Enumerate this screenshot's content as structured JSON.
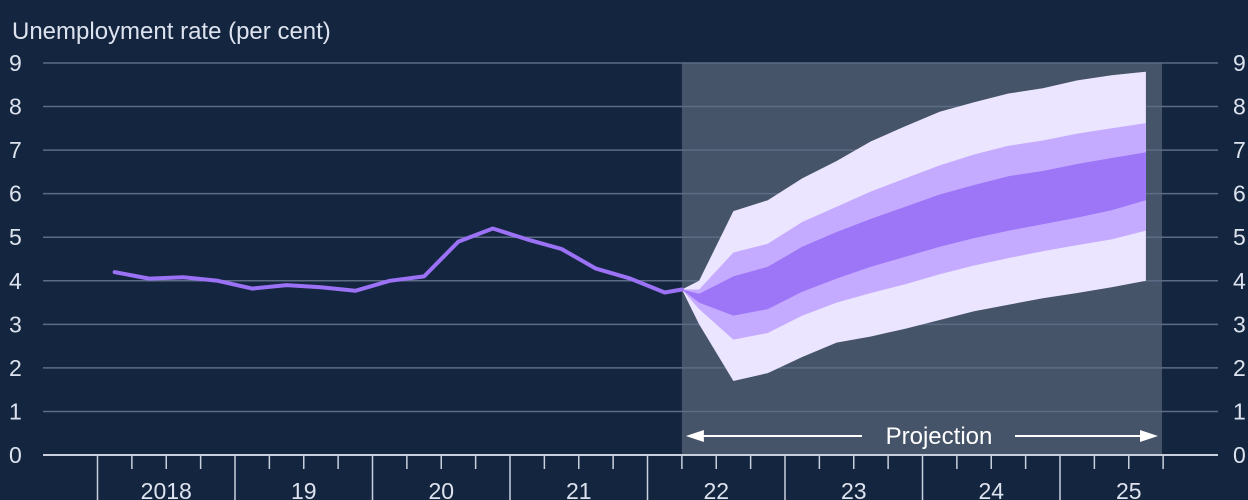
{
  "chart_data": {
    "type": "line",
    "title": "",
    "ylabel": "Unemployment rate (per cent)",
    "xlabel": "",
    "ylim": [
      0,
      9
    ],
    "yticks": [
      0,
      1,
      2,
      3,
      4,
      5,
      6,
      7,
      8,
      9
    ],
    "year_labels": [
      "2018",
      "19",
      "20",
      "21",
      "22",
      "23",
      "24",
      "25"
    ],
    "grid": true,
    "colors": {
      "background": "#14253f",
      "projection_shade": "#465469",
      "line": "#9b72f5",
      "band_outer": "#ece5ff",
      "band_middle": "#c5abff",
      "band_inner": "#9d75f7",
      "grid": "#5d6c86",
      "axis": "#c8d0de"
    },
    "series": [
      {
        "name": "",
        "x": [
          "2018Q1",
          "2018Q2",
          "2018Q3",
          "2018Q4",
          "2019Q1",
          "2019Q2",
          "2019Q3",
          "2019Q4",
          "2020Q1",
          "2020Q2",
          "2020Q3",
          "2020Q4",
          "2021Q1",
          "2021Q2",
          "2021Q3",
          "2021Q4",
          "2022Q1"
        ],
        "values": [
          4.2,
          4.05,
          4.08,
          4.0,
          3.82,
          3.9,
          3.85,
          3.77,
          4.0,
          4.1,
          4.9,
          5.2,
          4.95,
          4.73,
          4.28,
          4.05,
          3.73
        ]
      }
    ],
    "extra_point": {
      "x": "2022Q1_end",
      "value": 3.8
    },
    "fan_chart": {
      "x": [
        "2022Q1_end",
        "2022Q2",
        "2022Q3",
        "2022Q4",
        "2023Q1",
        "2023Q2",
        "2023Q3",
        "2023Q4",
        "2024Q1",
        "2024Q2",
        "2024Q3",
        "2024Q4",
        "2025Q1",
        "2025Q2",
        "2025Q3"
      ],
      "outer_upper": [
        3.8,
        4.0,
        5.6,
        5.85,
        6.35,
        6.75,
        7.2,
        7.55,
        7.88,
        8.1,
        8.3,
        8.42,
        8.6,
        8.72,
        8.8
      ],
      "outer_lower": [
        3.8,
        3.0,
        1.7,
        1.88,
        2.25,
        2.58,
        2.72,
        2.9,
        3.1,
        3.3,
        3.45,
        3.6,
        3.72,
        3.85,
        4.0
      ],
      "middle_upper": [
        3.8,
        3.8,
        4.65,
        4.85,
        5.35,
        5.7,
        6.05,
        6.35,
        6.65,
        6.9,
        7.1,
        7.22,
        7.38,
        7.5,
        7.62
      ],
      "middle_lower": [
        3.8,
        3.35,
        2.65,
        2.8,
        3.2,
        3.5,
        3.72,
        3.92,
        4.15,
        4.35,
        4.52,
        4.68,
        4.82,
        4.95,
        5.15
      ],
      "inner_upper": [
        3.8,
        3.7,
        4.1,
        4.32,
        4.78,
        5.12,
        5.42,
        5.7,
        5.98,
        6.2,
        6.4,
        6.52,
        6.68,
        6.82,
        6.95
      ],
      "inner_lower": [
        3.8,
        3.5,
        3.2,
        3.35,
        3.75,
        4.05,
        4.32,
        4.55,
        4.78,
        4.98,
        5.15,
        5.3,
        5.45,
        5.62,
        5.85
      ]
    },
    "annotation": {
      "text": "Projection"
    }
  }
}
